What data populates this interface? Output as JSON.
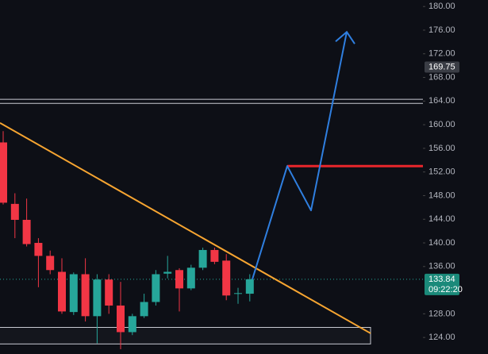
{
  "chart_data": {
    "type": "candlestick",
    "up_color": "#26a69a",
    "down_color": "#f23645",
    "ylim": [
      121.2,
      181.1
    ],
    "yticks": [
      {
        "value": 124,
        "label": "124.00"
      },
      {
        "value": 128,
        "label": "128.00"
      },
      {
        "value": 136,
        "label": "136.00"
      },
      {
        "value": 140,
        "label": "140.00"
      },
      {
        "value": 144,
        "label": "144.00"
      },
      {
        "value": 148,
        "label": "148.00"
      },
      {
        "value": 152,
        "label": "152.00"
      },
      {
        "value": 156,
        "label": "156.00"
      },
      {
        "value": 160,
        "label": "160.00"
      },
      {
        "value": 164,
        "label": "164.00"
      },
      {
        "value": 168,
        "label": "168.00"
      },
      {
        "value": 172,
        "label": "172.00"
      },
      {
        "value": 176,
        "label": "176.00"
      },
      {
        "value": 180,
        "label": "180.00"
      }
    ],
    "candles": [
      {
        "open": 157,
        "high": 158.9,
        "low": 146.5,
        "close": 146.8
      },
      {
        "open": 146.6,
        "high": 148.4,
        "low": 140.8,
        "close": 143.9
      },
      {
        "open": 143.9,
        "high": 147.5,
        "low": 139.4,
        "close": 139.8
      },
      {
        "open": 140,
        "high": 140.8,
        "low": 132.5,
        "close": 137.8
      },
      {
        "open": 137.8,
        "high": 138.7,
        "low": 134.7,
        "close": 135.4
      },
      {
        "open": 135.1,
        "high": 137.4,
        "low": 128,
        "close": 128.4
      },
      {
        "open": 128.3,
        "high": 135,
        "low": 127.8,
        "close": 134.7
      },
      {
        "open": 134.7,
        "high": 137.4,
        "low": 126.7,
        "close": 127.6
      },
      {
        "open": 127.6,
        "high": 134.7,
        "low": 123,
        "close": 133.8
      },
      {
        "open": 133.8,
        "high": 134.7,
        "low": 128,
        "close": 129.4
      },
      {
        "open": 129.4,
        "high": 133.4,
        "low": 122,
        "close": 124.9
      },
      {
        "open": 124.9,
        "high": 128,
        "low": 124.4,
        "close": 127.6
      },
      {
        "open": 127.6,
        "high": 131.4,
        "low": 127.3,
        "close": 130
      },
      {
        "open": 130,
        "high": 135.4,
        "low": 129.4,
        "close": 134.7
      },
      {
        "open": 134.8,
        "high": 137.8,
        "low": 134,
        "close": 135.1
      },
      {
        "open": 135.4,
        "high": 135.7,
        "low": 128.4,
        "close": 132.3
      },
      {
        "open": 132.3,
        "high": 136.3,
        "low": 132,
        "close": 135.8
      },
      {
        "open": 135.8,
        "high": 139.2,
        "low": 135.4,
        "close": 138.8
      },
      {
        "open": 138.8,
        "high": 139.2,
        "low": 136.4,
        "close": 136.8
      },
      {
        "open": 137,
        "high": 138.1,
        "low": 130.3,
        "close": 131.1
      },
      {
        "open": 131.4,
        "high": 132.4,
        "low": 129.7,
        "close": 131.5
      },
      {
        "open": 131.4,
        "high": 134.7,
        "low": 130.1,
        "close": 133.84
      }
    ],
    "levels": [
      164.3,
      163.6
    ],
    "support_zone": [
      125.7,
      122.9
    ],
    "trendline": [
      160.3,
      124.7
    ],
    "resistance": 153.0,
    "projection": [
      133.84,
      153.0,
      145.5,
      175.7
    ],
    "marker_price": 169.75,
    "current_price": 133.84,
    "countdown": "09:22:20"
  }
}
